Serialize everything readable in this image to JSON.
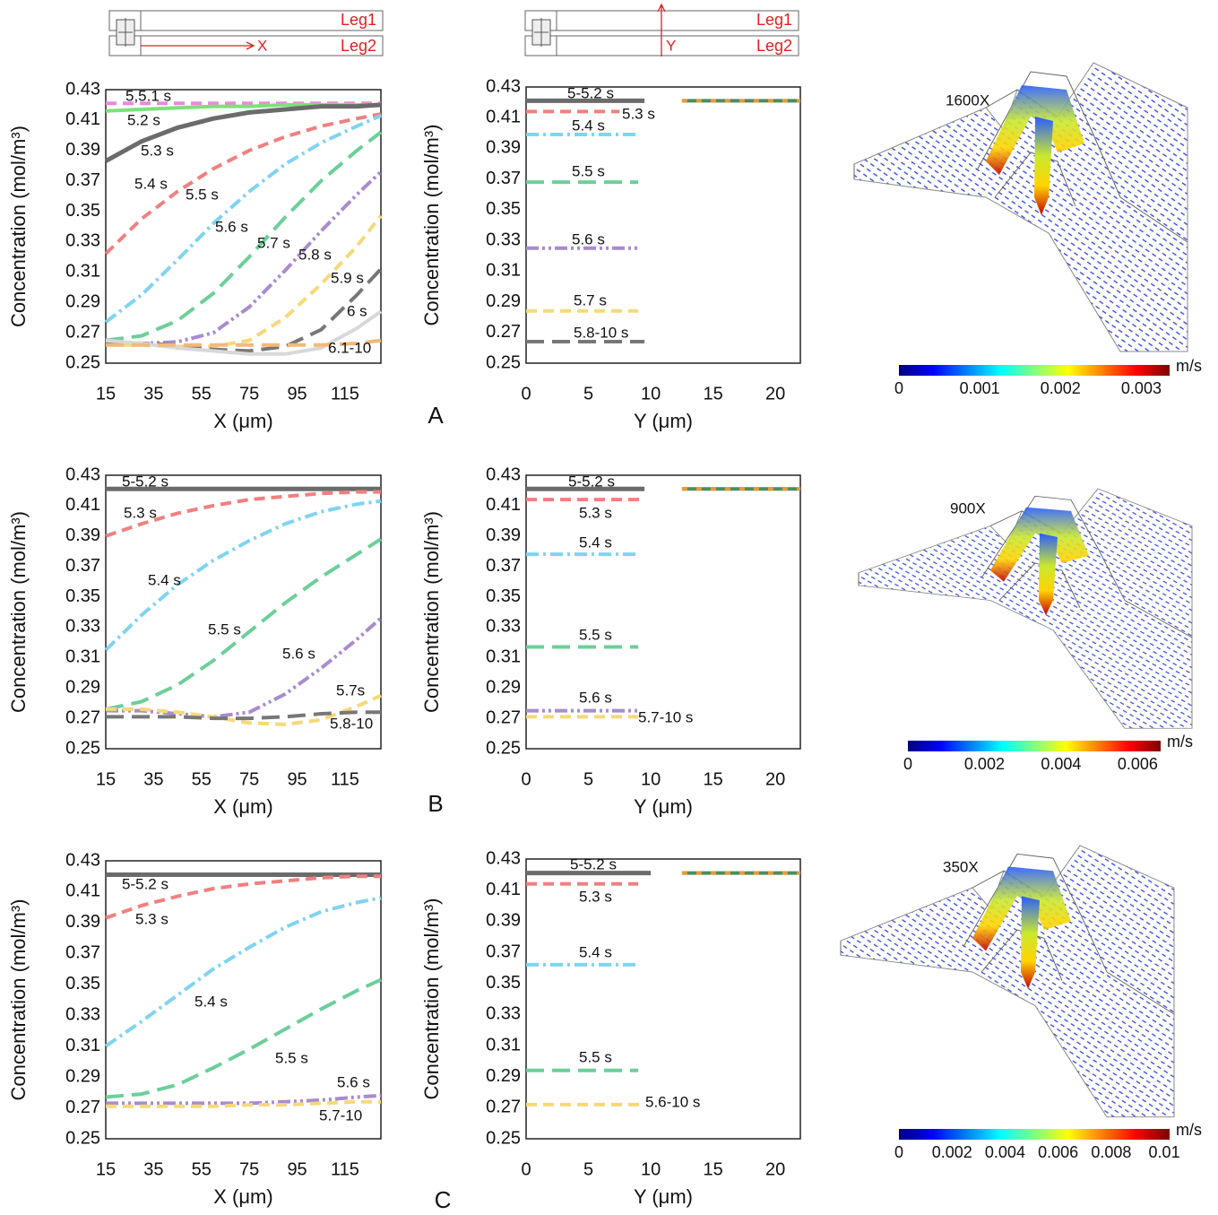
{
  "schematics": [
    {
      "leg1": "Leg1",
      "leg2": "Leg2",
      "axis": "X"
    },
    {
      "leg1": "Leg1",
      "leg2": "Leg2",
      "axis": "Y"
    }
  ],
  "chart_data": [
    {
      "type": "line",
      "x_label": "X (μm)",
      "y_label": "Concentration (mol/m³)",
      "xlim": [
        15,
        130
      ],
      "ylim": [
        0.25,
        0.43
      ],
      "xticks": [
        15,
        35,
        55,
        75,
        95,
        115
      ],
      "yticks": [
        0.25,
        0.27,
        0.29,
        0.31,
        0.33,
        0.35,
        0.37,
        0.39,
        0.41,
        0.43
      ],
      "x": [
        15,
        30,
        45,
        60,
        75,
        90,
        105,
        120,
        130
      ],
      "series": [
        {
          "name": "5,5.1 s",
          "color": "#ee88dd",
          "dash": "dashed",
          "values": [
            0.421,
            0.421,
            0.421,
            0.421,
            0.421,
            0.421,
            0.421,
            0.421,
            0.421
          ]
        },
        {
          "name": "5.2 s",
          "color": "#7de07a",
          "dash": "solid",
          "values": [
            0.416,
            0.417,
            0.418,
            0.419,
            0.419,
            0.42,
            0.42,
            0.42,
            0.42
          ]
        },
        {
          "name": "5.3 s",
          "color": "#6b6b6b",
          "dash": "solid",
          "values": [
            0.383,
            0.396,
            0.405,
            0.411,
            0.415,
            0.417,
            0.419,
            0.419,
            0.42
          ]
        },
        {
          "name": "5.4 s",
          "color": "#f08080",
          "dash": "dashed",
          "values": [
            0.322,
            0.345,
            0.363,
            0.378,
            0.39,
            0.399,
            0.406,
            0.411,
            0.414
          ]
        },
        {
          "name": "5.5 s",
          "color": "#7fd4f0",
          "dash": "dash-dot",
          "values": [
            0.277,
            0.295,
            0.318,
            0.342,
            0.363,
            0.381,
            0.395,
            0.406,
            0.413
          ]
        },
        {
          "name": "5.6 s",
          "color": "#6ccf9a",
          "dash": "long-dash",
          "values": [
            0.265,
            0.268,
            0.278,
            0.296,
            0.32,
            0.346,
            0.37,
            0.39,
            0.402
          ]
        },
        {
          "name": "5.7 s",
          "color": "#a98bd0",
          "dash": "dash-dot-dot",
          "values": [
            0.263,
            0.263,
            0.264,
            0.27,
            0.287,
            0.311,
            0.337,
            0.361,
            0.376
          ]
        },
        {
          "name": "5.8 s",
          "color": "#f7d87a",
          "dash": "dashed",
          "values": [
            0.262,
            0.262,
            0.261,
            0.261,
            0.265,
            0.28,
            0.302,
            0.327,
            0.347
          ]
        },
        {
          "name": "5.9 s",
          "color": "#777777",
          "dash": "long-dash",
          "values": [
            0.264,
            0.263,
            0.262,
            0.259,
            0.258,
            0.261,
            0.272,
            0.295,
            0.312
          ]
        },
        {
          "name": "6 s",
          "color": "#d8d8d8",
          "dash": "solid",
          "values": [
            0.265,
            0.263,
            0.26,
            0.258,
            0.256,
            0.256,
            0.26,
            0.273,
            0.284
          ]
        },
        {
          "name": "6.1-10",
          "color": "#f2b97a",
          "dash": "long-dash",
          "values": [
            0.262,
            0.262,
            0.262,
            0.262,
            0.262,
            0.262,
            0.262,
            0.263,
            0.265
          ]
        }
      ]
    },
    {
      "type": "line",
      "x_label": "Y (μm)",
      "y_label": "Concentration (mol/m³)",
      "xlim": [
        0,
        22
      ],
      "ylim": [
        0.25,
        0.43
      ],
      "xticks": [
        0,
        5,
        10,
        15,
        20
      ],
      "yticks": [
        0.25,
        0.27,
        0.29,
        0.31,
        0.33,
        0.35,
        0.37,
        0.39,
        0.41,
        0.43
      ],
      "series": [
        {
          "name": "5-5.2 s",
          "color": "#6b6b6b",
          "dash": "solid",
          "x": [
            0,
            9.5
          ],
          "values": [
            0.421,
            0.421
          ]
        },
        {
          "name": "5.3 s",
          "color": "#f08080",
          "dash": "dashed",
          "x": [
            0,
            7.5
          ],
          "values": [
            0.414,
            0.414
          ]
        },
        {
          "name": "5.4 s",
          "color": "#7fd4f0",
          "dash": "dash-dot",
          "x": [
            0,
            9
          ],
          "values": [
            0.399,
            0.399
          ]
        },
        {
          "name": "5.5 s",
          "color": "#6ccf9a",
          "dash": "long-dash",
          "x": [
            0,
            9
          ],
          "values": [
            0.368,
            0.368
          ]
        },
        {
          "name": "5.6 s",
          "color": "#a98bd0",
          "dash": "dash-dot-dot",
          "x": [
            0,
            9
          ],
          "values": [
            0.325,
            0.325
          ]
        },
        {
          "name": "5.7 s",
          "color": "#f7d87a",
          "dash": "dashed",
          "x": [
            0,
            9
          ],
          "values": [
            0.284,
            0.284
          ]
        },
        {
          "name": "5.8-10 s",
          "color": "#777777",
          "dash": "long-dash",
          "x": [
            0,
            9.5
          ],
          "values": [
            0.264,
            0.264
          ]
        },
        {
          "color": "#4f8c5e",
          "stripe": "#e89a3c",
          "dash": "solid",
          "x": [
            12.5,
            22
          ],
          "values": [
            0.421,
            0.421
          ]
        }
      ]
    },
    {
      "type": "line",
      "x_label": "X (μm)",
      "y_label": "Concentration (mol/m³)",
      "xlim": [
        15,
        130
      ],
      "ylim": [
        0.25,
        0.43
      ],
      "xticks": [
        15,
        35,
        55,
        75,
        95,
        115
      ],
      "yticks": [
        0.25,
        0.27,
        0.29,
        0.31,
        0.33,
        0.35,
        0.37,
        0.39,
        0.41,
        0.43
      ],
      "x": [
        15,
        30,
        45,
        60,
        75,
        90,
        105,
        120,
        130
      ],
      "series": [
        {
          "name": "5-5.2 s",
          "color": "#6b6b6b",
          "dash": "solid",
          "values": [
            0.421,
            0.421,
            0.421,
            0.421,
            0.421,
            0.421,
            0.421,
            0.421,
            0.421
          ]
        },
        {
          "name": "5.3 s",
          "color": "#f08080",
          "dash": "dashed",
          "values": [
            0.39,
            0.398,
            0.405,
            0.41,
            0.414,
            0.416,
            0.418,
            0.419,
            0.419
          ]
        },
        {
          "name": "5.4 s",
          "color": "#7fd4f0",
          "dash": "dash-dot",
          "values": [
            0.315,
            0.338,
            0.358,
            0.374,
            0.387,
            0.398,
            0.406,
            0.411,
            0.413
          ]
        },
        {
          "name": "5.5 s",
          "color": "#6ccf9a",
          "dash": "long-dash",
          "values": [
            0.276,
            0.281,
            0.292,
            0.308,
            0.327,
            0.346,
            0.363,
            0.378,
            0.388
          ]
        },
        {
          "name": "5.6 s",
          "color": "#a98bd0",
          "dash": "dash-dot-dot",
          "values": [
            0.275,
            0.275,
            0.273,
            0.271,
            0.274,
            0.286,
            0.303,
            0.322,
            0.336
          ]
        },
        {
          "name": "5.7s",
          "color": "#f7d87a",
          "dash": "dashed",
          "values": [
            0.276,
            0.276,
            0.274,
            0.271,
            0.267,
            0.266,
            0.269,
            0.278,
            0.285
          ]
        },
        {
          "name": "5.8-10",
          "color": "#777777",
          "dash": "long-dash",
          "values": [
            0.271,
            0.271,
            0.271,
            0.27,
            0.27,
            0.271,
            0.273,
            0.274,
            0.274
          ]
        }
      ]
    },
    {
      "type": "line",
      "x_label": "Y (μm)",
      "y_label": "Concentration (mol/m³)",
      "xlim": [
        0,
        22
      ],
      "ylim": [
        0.25,
        0.43
      ],
      "xticks": [
        0,
        5,
        10,
        15,
        20
      ],
      "yticks": [
        0.25,
        0.27,
        0.29,
        0.31,
        0.33,
        0.35,
        0.37,
        0.39,
        0.41,
        0.43
      ],
      "series": [
        {
          "name": "5-5.2 s",
          "color": "#6b6b6b",
          "dash": "solid",
          "x": [
            0,
            9.5
          ],
          "values": [
            0.421,
            0.421
          ]
        },
        {
          "name": "5.3 s",
          "color": "#f08080",
          "dash": "dashed",
          "x": [
            0,
            9.5
          ],
          "values": [
            0.414,
            0.414
          ]
        },
        {
          "name": "5.4 s",
          "color": "#7fd4f0",
          "dash": "dash-dot",
          "x": [
            0,
            9
          ],
          "values": [
            0.378,
            0.378
          ]
        },
        {
          "name": "5.5 s",
          "color": "#6ccf9a",
          "dash": "long-dash",
          "x": [
            0,
            9
          ],
          "values": [
            0.317,
            0.317
          ]
        },
        {
          "name": "5.6 s",
          "color": "#a98bd0",
          "dash": "dash-dot-dot",
          "x": [
            0,
            9
          ],
          "values": [
            0.275,
            0.275
          ]
        },
        {
          "name": "5.7-10 s",
          "color": "#f7d87a",
          "dash": "dashed",
          "x": [
            0,
            9
          ],
          "values": [
            0.271,
            0.271
          ]
        },
        {
          "color": "#4f8c5e",
          "stripe": "#e89a3c",
          "dash": "solid",
          "x": [
            12.5,
            22
          ],
          "values": [
            0.421,
            0.421
          ]
        }
      ]
    },
    {
      "type": "line",
      "x_label": "X (μm)",
      "y_label": "Concentration (mol/m³)",
      "xlim": [
        15,
        130
      ],
      "ylim": [
        0.25,
        0.43
      ],
      "xticks": [
        15,
        35,
        55,
        75,
        95,
        115
      ],
      "yticks": [
        0.25,
        0.27,
        0.29,
        0.31,
        0.33,
        0.35,
        0.37,
        0.39,
        0.41,
        0.43
      ],
      "x": [
        15,
        30,
        45,
        60,
        75,
        90,
        105,
        120,
        130
      ],
      "series": [
        {
          "name": "5-5.2 s",
          "color": "#6b6b6b",
          "dash": "solid",
          "values": [
            0.421,
            0.421,
            0.421,
            0.421,
            0.421,
            0.421,
            0.421,
            0.421,
            0.421
          ]
        },
        {
          "name": "5.3 s",
          "color": "#f08080",
          "dash": "dashed",
          "values": [
            0.393,
            0.401,
            0.407,
            0.412,
            0.415,
            0.417,
            0.419,
            0.42,
            0.42
          ]
        },
        {
          "name": "5.4 s",
          "color": "#7fd4f0",
          "dash": "dash-dot",
          "values": [
            0.31,
            0.326,
            0.343,
            0.36,
            0.374,
            0.387,
            0.397,
            0.403,
            0.406
          ]
        },
        {
          "name": "5.5 s",
          "color": "#6ccf9a",
          "dash": "long-dash",
          "values": [
            0.277,
            0.279,
            0.285,
            0.296,
            0.308,
            0.321,
            0.334,
            0.346,
            0.353
          ]
        },
        {
          "name": "5.6 s",
          "color": "#a98bd0",
          "dash": "dash-dot-dot",
          "values": [
            0.273,
            0.273,
            0.273,
            0.273,
            0.273,
            0.274,
            0.275,
            0.277,
            0.278
          ]
        },
        {
          "name": "5.7-10",
          "color": "#f7d87a",
          "dash": "dashed",
          "values": [
            0.271,
            0.271,
            0.271,
            0.271,
            0.272,
            0.272,
            0.273,
            0.274,
            0.274
          ]
        }
      ]
    },
    {
      "type": "line",
      "x_label": "Y (μm)",
      "y_label": "Concentration (mol/m³)",
      "xlim": [
        0,
        22
      ],
      "ylim": [
        0.25,
        0.43
      ],
      "xticks": [
        0,
        5,
        10,
        15,
        20
      ],
      "yticks": [
        0.25,
        0.27,
        0.29,
        0.31,
        0.33,
        0.35,
        0.37,
        0.39,
        0.41,
        0.43
      ],
      "series": [
        {
          "name": "5-5.2 s",
          "color": "#6b6b6b",
          "dash": "solid",
          "x": [
            0,
            10
          ],
          "values": [
            0.421,
            0.421
          ]
        },
        {
          "name": "5.3 s",
          "color": "#f08080",
          "dash": "dashed",
          "x": [
            0,
            9
          ],
          "values": [
            0.414,
            0.414
          ]
        },
        {
          "name": "5.4 s",
          "color": "#7fd4f0",
          "dash": "dash-dot",
          "x": [
            0,
            9
          ],
          "values": [
            0.362,
            0.362
          ]
        },
        {
          "name": "5.5 s",
          "color": "#6ccf9a",
          "dash": "long-dash",
          "x": [
            0,
            9
          ],
          "values": [
            0.294,
            0.294
          ]
        },
        {
          "name": "5.6-10 s",
          "color": "#f7d87a",
          "dash": "dashed",
          "x": [
            0,
            9.5
          ],
          "values": [
            0.272,
            0.272
          ]
        },
        {
          "color": "#4f8c5e",
          "stripe": "#e89a3c",
          "dash": "solid",
          "x": [
            12.5,
            22
          ],
          "values": [
            0.421,
            0.421
          ]
        }
      ]
    }
  ],
  "rows": [
    {
      "label": "A",
      "magnification": "1600X",
      "colorbar": {
        "unit": "m/s",
        "lim": [
          0,
          0.00335
        ],
        "ticks": [
          0,
          0.001,
          0.002,
          0.003
        ]
      }
    },
    {
      "label": "B",
      "magnification": "900X",
      "colorbar": {
        "unit": "m/s",
        "lim": [
          0,
          0.0066
        ],
        "ticks": [
          0,
          0.002,
          0.004,
          0.006
        ]
      }
    },
    {
      "label": "C",
      "magnification": "350X",
      "colorbar": {
        "unit": "m/s",
        "lim": [
          0,
          0.0102
        ],
        "ticks": [
          0,
          0.002,
          0.004,
          0.006,
          0.008,
          0.01
        ]
      }
    }
  ]
}
